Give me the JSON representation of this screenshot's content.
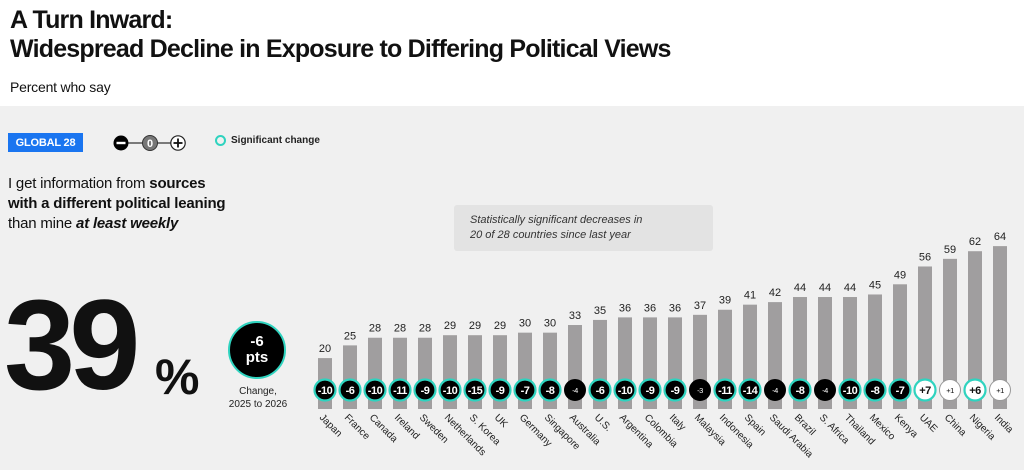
{
  "header": {
    "title_line1": "A Turn Inward:",
    "title_line2": "Widespread Decline in Exposure to Differing Political Views",
    "subtitle": "Percent who say"
  },
  "legend": {
    "badge": "GLOBAL 28",
    "scale_icons": [
      "minus-circle-icon",
      "zero-circle-icon",
      "plus-circle-icon"
    ],
    "scale_zero": "0",
    "significant_label": "Significant change",
    "colors": {
      "significant_ring": "#2fd3bf",
      "badge_bg": "#1a75f0",
      "bar": "#a09e9f",
      "negative": "#000000",
      "positive": "#ffffff"
    }
  },
  "question": {
    "part1": "I get information from ",
    "part2_bold": "sources",
    "part3_bold": "with a different political leaning",
    "part4": "than mine ",
    "part5_bolditalic": "at least weekly"
  },
  "global": {
    "value": "39",
    "unit": "%",
    "change_value": "-6",
    "change_unit": "pts",
    "change_label_line1": "Change,",
    "change_label_line2": "2025 to 2026"
  },
  "note": {
    "line1": "Statistically significant decreases in",
    "line2": "20 of 28 countries since last year"
  },
  "chart_data": {
    "type": "bar",
    "title": "I get information from sources with a different political leaning than mine at least weekly",
    "ylabel": "Percent",
    "xlabel": "",
    "ylim": [
      0,
      70
    ],
    "grid": false,
    "categories": [
      "Japan",
      "France",
      "Canada",
      "Ireland",
      "Sweden",
      "Netherlands",
      "S. Korea",
      "UK",
      "Germany",
      "Singapore",
      "Australia",
      "U.S.",
      "Argentina",
      "Colombia",
      "Italy",
      "Malaysia",
      "Indonesia",
      "Spain",
      "Saudi Arabia",
      "Brazil",
      "S. Africa",
      "Thailand",
      "Mexico",
      "Kenya",
      "UAE",
      "China",
      "Nigeria",
      "India"
    ],
    "values": [
      20,
      25,
      28,
      28,
      28,
      29,
      29,
      29,
      30,
      30,
      33,
      35,
      36,
      36,
      36,
      37,
      39,
      41,
      42,
      44,
      44,
      44,
      45,
      49,
      56,
      59,
      62,
      64
    ],
    "changes": [
      "-10",
      "-6",
      "-10",
      "-11",
      "-9",
      "-10",
      "-15",
      "-9",
      "-7",
      "-8",
      "-4",
      "-6",
      "-10",
      "-9",
      "-9",
      "-3",
      "-11",
      "-14",
      "-4",
      "-8",
      "-4",
      "-10",
      "-8",
      "-7",
      "+7",
      "+1",
      "+6",
      "+1"
    ],
    "significant": [
      true,
      true,
      true,
      true,
      true,
      true,
      true,
      true,
      true,
      true,
      false,
      true,
      true,
      true,
      true,
      false,
      true,
      true,
      false,
      true,
      false,
      true,
      true,
      true,
      true,
      false,
      true,
      false
    ]
  }
}
